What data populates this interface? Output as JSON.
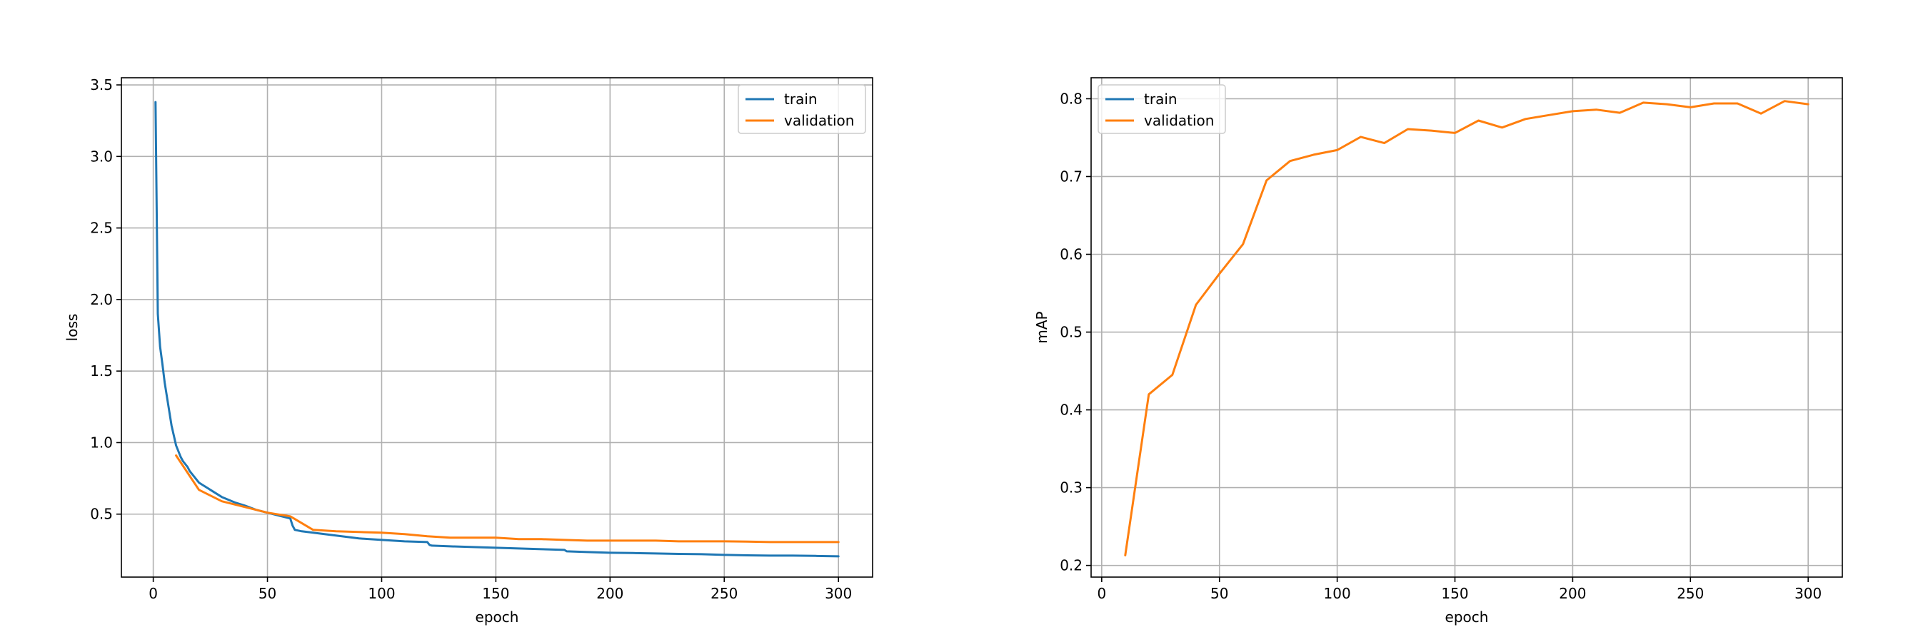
{
  "chart_data": [
    {
      "type": "line",
      "title": "",
      "xlabel": "epoch",
      "ylabel": "loss",
      "xlim": [
        -13.95,
        314.95
      ],
      "ylim": [
        0.06,
        3.55
      ],
      "xticks": [
        0,
        50,
        100,
        150,
        200,
        250,
        300
      ],
      "yticks": [
        0.5,
        1.0,
        1.5,
        2.0,
        2.5,
        3.0,
        3.5
      ],
      "ytick_format": 1,
      "grid": true,
      "legend": "upper right",
      "colors": {
        "train": "#1f77b4",
        "validation": "#ff7f0e"
      },
      "series": [
        {
          "name": "train",
          "x": [
            1,
            2,
            3,
            4,
            5,
            6,
            7,
            8,
            9,
            10,
            11,
            12,
            13,
            14,
            15,
            16,
            17,
            18,
            19,
            20,
            22,
            24,
            26,
            28,
            30,
            33,
            36,
            40,
            45,
            50,
            55,
            60,
            61,
            62,
            65,
            70,
            75,
            80,
            90,
            100,
            110,
            120,
            121,
            122,
            130,
            140,
            150,
            160,
            170,
            180,
            181,
            190,
            200,
            210,
            220,
            230,
            240,
            250,
            260,
            270,
            280,
            290,
            300
          ],
          "values": [
            3.38,
            1.9,
            1.67,
            1.55,
            1.42,
            1.32,
            1.22,
            1.12,
            1.05,
            0.98,
            0.94,
            0.9,
            0.87,
            0.85,
            0.83,
            0.8,
            0.78,
            0.76,
            0.74,
            0.72,
            0.7,
            0.68,
            0.66,
            0.64,
            0.62,
            0.6,
            0.58,
            0.56,
            0.53,
            0.51,
            0.49,
            0.47,
            0.42,
            0.39,
            0.38,
            0.37,
            0.36,
            0.35,
            0.33,
            0.32,
            0.31,
            0.305,
            0.285,
            0.28,
            0.275,
            0.27,
            0.265,
            0.26,
            0.255,
            0.25,
            0.24,
            0.235,
            0.23,
            0.228,
            0.225,
            0.222,
            0.22,
            0.215,
            0.212,
            0.21,
            0.21,
            0.208,
            0.205
          ]
        },
        {
          "name": "validation",
          "x": [
            10,
            20,
            30,
            40,
            50,
            60,
            70,
            80,
            90,
            100,
            110,
            120,
            130,
            140,
            150,
            160,
            170,
            180,
            190,
            200,
            210,
            220,
            230,
            240,
            250,
            260,
            270,
            280,
            290,
            300
          ],
          "values": [
            0.91,
            0.67,
            0.59,
            0.55,
            0.51,
            0.485,
            0.39,
            0.38,
            0.375,
            0.37,
            0.36,
            0.345,
            0.335,
            0.335,
            0.335,
            0.325,
            0.325,
            0.32,
            0.315,
            0.315,
            0.315,
            0.315,
            0.31,
            0.31,
            0.31,
            0.308,
            0.305,
            0.305,
            0.305,
            0.305
          ]
        }
      ]
    },
    {
      "type": "line",
      "title": "",
      "xlabel": "epoch",
      "ylabel": "mAP",
      "xlim": [
        -4.5,
        314.5
      ],
      "ylim": [
        0.185,
        0.827
      ],
      "xticks": [
        0,
        50,
        100,
        150,
        200,
        250,
        300
      ],
      "yticks": [
        0.2,
        0.3,
        0.4,
        0.5,
        0.6,
        0.7,
        0.8
      ],
      "ytick_format": 1,
      "grid": true,
      "legend": "upper left",
      "colors": {
        "train": "#1f77b4",
        "validation": "#ff7f0e"
      },
      "series": [
        {
          "name": "train",
          "x": [],
          "values": []
        },
        {
          "name": "validation",
          "x": [
            10,
            20,
            30,
            40,
            50,
            60,
            70,
            80,
            90,
            100,
            110,
            120,
            130,
            140,
            150,
            160,
            170,
            180,
            190,
            200,
            210,
            220,
            230,
            240,
            250,
            260,
            270,
            280,
            290,
            300
          ],
          "values": [
            0.213,
            0.42,
            0.445,
            0.535,
            0.575,
            0.613,
            0.695,
            0.72,
            0.728,
            0.734,
            0.751,
            0.743,
            0.761,
            0.759,
            0.756,
            0.772,
            0.763,
            0.774,
            0.779,
            0.784,
            0.786,
            0.782,
            0.795,
            0.793,
            0.789,
            0.794,
            0.794,
            0.781,
            0.797,
            0.793
          ]
        }
      ]
    }
  ]
}
